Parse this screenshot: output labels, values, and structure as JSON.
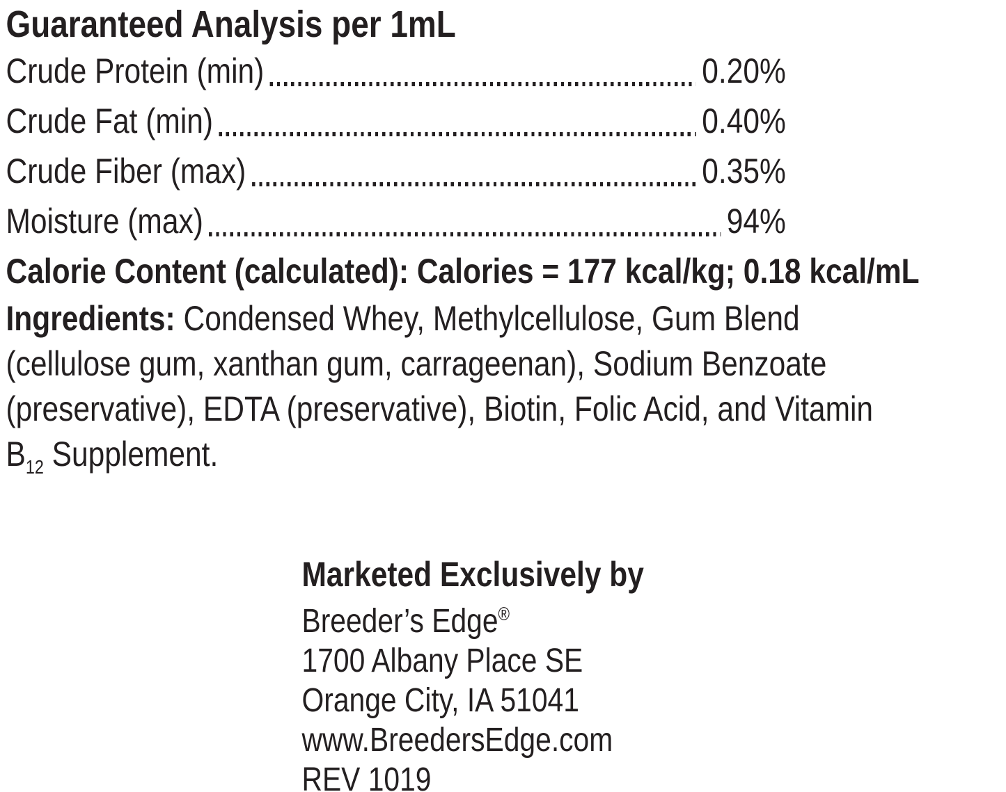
{
  "label": {
    "title": "Guaranteed Analysis per 1mL",
    "analysis_rows": [
      {
        "name": "Crude Protein (min)",
        "value": "0.20%"
      },
      {
        "name": "Crude Fat (min)",
        "value": "0.40%"
      },
      {
        "name": "Crude Fiber (max)",
        "value": "0.35%"
      },
      {
        "name": "Moisture (max)",
        "value": "94%"
      }
    ],
    "calorie_content": "Calorie Content (calculated): Calories = 177 kcal/kg; 0.18 kcal/mL",
    "ingredients": {
      "label": "Ingredients:",
      "line1_rest": " Condensed Whey, Methylcellulose, Gum Blend",
      "line2": "(cellulose gum, xanthan gum, carrageenan), Sodium Benzoate",
      "line3": "(preservative), EDTA (preservative), Biotin, Folic Acid, and Vitamin",
      "line4_base": "B",
      "line4_subscript": "12",
      "line4_rest": " Supplement."
    },
    "distributor": {
      "heading": "Marketed Exclusively by",
      "brand": "Breeder’s Edge",
      "registered_mark": "®",
      "address_line1": "1700 Albany Place SE",
      "address_line2": "Orange City, IA 51041",
      "website": "www.BreedersEdge.com",
      "revision": "REV 1019"
    },
    "colors": {
      "text": "#231f20",
      "background": "#ffffff"
    }
  }
}
